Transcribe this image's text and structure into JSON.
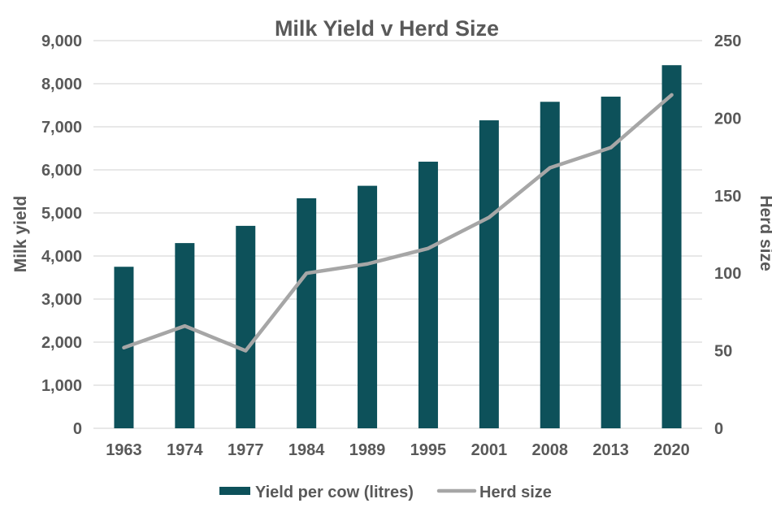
{
  "title": "Milk Yield v Herd Size",
  "colors": {
    "bar": "#0d515a",
    "line": "#a6a6a6",
    "text": "#595959",
    "grid": "#d9d9d9",
    "background": "#ffffff"
  },
  "left_axis": {
    "title": "Milk yield",
    "min": 0,
    "max": 9000,
    "step": 1000
  },
  "right_axis": {
    "title": "Herd size",
    "min": 0,
    "max": 250,
    "step": 50
  },
  "legend": [
    {
      "label": "Yield per cow (litres)",
      "type": "bar"
    },
    {
      "label": "Herd size",
      "type": "line"
    }
  ],
  "chart_data": {
    "type": "bar+line",
    "title": "Milk Yield v Herd Size",
    "categories": [
      "1963",
      "1974",
      "1977",
      "1984",
      "1989",
      "1995",
      "2001",
      "2008",
      "2013",
      "2020"
    ],
    "series": [
      {
        "name": "Yield per cow (litres)",
        "type": "bar",
        "axis": "left",
        "values": [
          3750,
          4300,
          4700,
          5340,
          5630,
          6190,
          7150,
          7580,
          7700,
          8430
        ]
      },
      {
        "name": "Herd size",
        "type": "line",
        "axis": "right",
        "values": [
          52,
          66,
          50,
          100,
          106,
          116,
          136,
          168,
          181,
          215
        ]
      }
    ],
    "left_ylim": [
      0,
      9000
    ],
    "right_ylim": [
      0,
      250
    ],
    "left_tick_format": "thousands-comma",
    "grid": true,
    "legend_position": "bottom"
  }
}
